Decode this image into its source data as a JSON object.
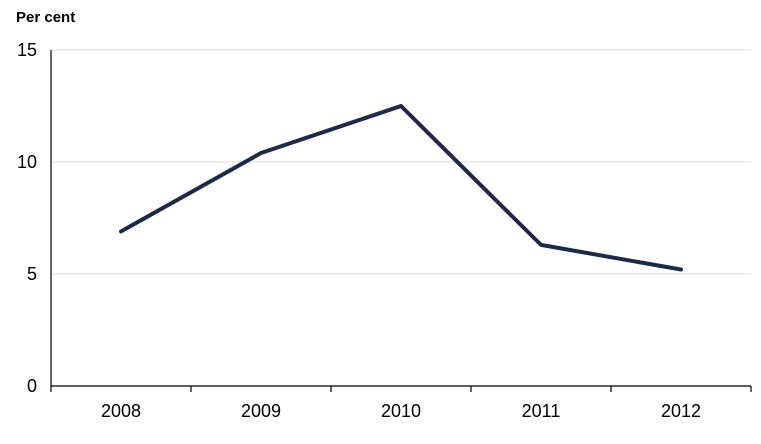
{
  "chart_data": {
    "type": "line",
    "title": "",
    "xlabel": "",
    "ylabel": "",
    "y_unit_label": "Per cent",
    "categories": [
      "2008",
      "2009",
      "2010",
      "2011",
      "2012"
    ],
    "series": [
      {
        "values": [
          6.9,
          10.4,
          12.5,
          6.3,
          5.2
        ],
        "color": "#1b2a4a"
      }
    ],
    "ylim": [
      0,
      15
    ],
    "yticks": [
      0,
      5,
      10,
      15
    ],
    "grid": true,
    "legend": "none"
  }
}
